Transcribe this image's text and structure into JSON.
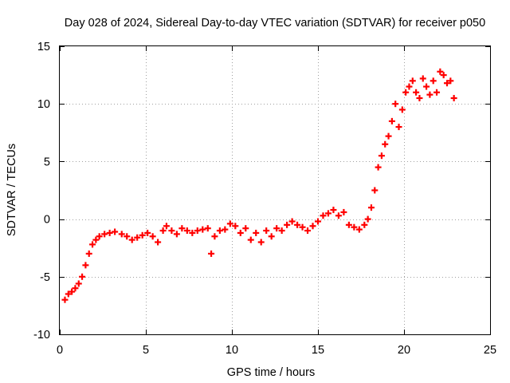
{
  "chart_data": {
    "type": "scatter",
    "title": "Day 028 of 2024, Sidereal Day-to-day VTEC variation (SDTVAR) for receiver p050",
    "xlabel": "GPS time / hours",
    "ylabel": "SDTVAR / TECUs",
    "xlim": [
      0,
      25
    ],
    "ylim": [
      -10,
      15
    ],
    "xticks": [
      0,
      5,
      10,
      15,
      20,
      25
    ],
    "yticks": [
      -10,
      -5,
      0,
      5,
      10,
      15
    ],
    "grid": true,
    "marker": "+",
    "series": [
      {
        "name": "SDTVAR p050",
        "color": "#ff0000",
        "x": [
          0.3,
          0.5,
          0.7,
          0.9,
          1.1,
          1.3,
          1.5,
          1.7,
          1.9,
          2.1,
          2.3,
          2.6,
          2.9,
          3.2,
          3.6,
          3.9,
          4.2,
          4.5,
          4.8,
          5.1,
          5.4,
          5.7,
          6.0,
          6.2,
          6.5,
          6.8,
          7.1,
          7.4,
          7.7,
          8.0,
          8.3,
          8.6,
          8.8,
          9.0,
          9.3,
          9.6,
          9.9,
          10.2,
          10.5,
          10.8,
          11.1,
          11.4,
          11.7,
          12.0,
          12.3,
          12.6,
          12.9,
          13.2,
          13.5,
          13.8,
          14.1,
          14.4,
          14.7,
          15.0,
          15.3,
          15.6,
          15.9,
          16.2,
          16.5,
          16.8,
          17.1,
          17.4,
          17.7,
          17.9,
          18.1,
          18.3,
          18.5,
          18.7,
          18.9,
          19.1,
          19.3,
          19.5,
          19.7,
          19.9,
          20.1,
          20.3,
          20.5,
          20.7,
          20.9,
          21.1,
          21.3,
          21.5,
          21.7,
          21.9,
          22.1,
          22.3,
          22.5,
          22.7,
          22.9
        ],
        "values": [
          -7.0,
          -6.5,
          -6.3,
          -6.0,
          -5.6,
          -5.0,
          -4.0,
          -3.0,
          -2.2,
          -1.8,
          -1.5,
          -1.3,
          -1.2,
          -1.1,
          -1.3,
          -1.5,
          -1.8,
          -1.6,
          -1.4,
          -1.2,
          -1.5,
          -2.0,
          -1.0,
          -0.6,
          -1.0,
          -1.3,
          -0.8,
          -1.0,
          -1.2,
          -1.0,
          -0.9,
          -0.8,
          -3.0,
          -1.5,
          -1.0,
          -0.9,
          -0.4,
          -0.6,
          -1.2,
          -0.8,
          -1.8,
          -1.2,
          -2.0,
          -1.0,
          -1.5,
          -0.8,
          -1.0,
          -0.5,
          -0.2,
          -0.5,
          -0.7,
          -1.0,
          -0.6,
          -0.2,
          0.3,
          0.5,
          0.8,
          0.3,
          0.6,
          -0.5,
          -0.7,
          -0.9,
          -0.5,
          0.0,
          1.0,
          2.5,
          4.5,
          5.5,
          6.5,
          7.2,
          8.5,
          10.0,
          8.0,
          9.5,
          11.0,
          11.5,
          12.0,
          11.0,
          10.5,
          12.2,
          11.5,
          10.8,
          12.0,
          11.0,
          12.8,
          12.5,
          11.8,
          12.0,
          10.5
        ]
      }
    ]
  }
}
